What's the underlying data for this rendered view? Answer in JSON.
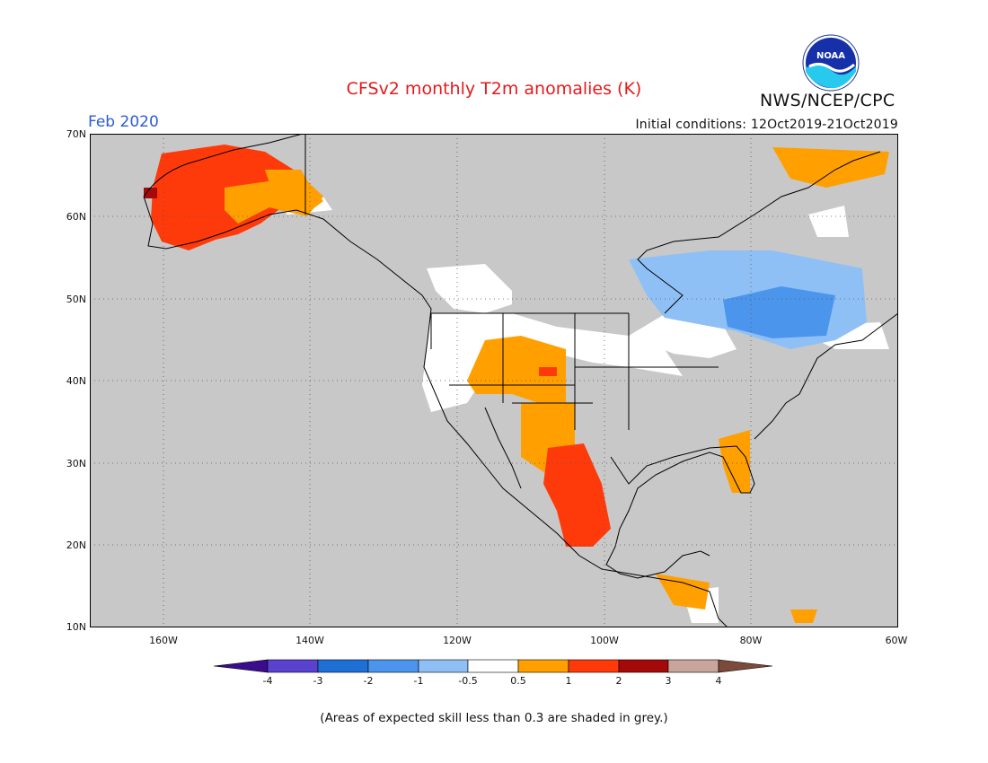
{
  "map": {
    "title": "CFSv2 monthly T2m anomalies (K)",
    "valid_month": "Feb 2020",
    "initial_conditions": "Initial conditions: 12Oct2019-21Oct2019",
    "agency": "NWS/NCEP/CPC",
    "logo_text": "NOAA",
    "lat_labels": [
      "70N",
      "60N",
      "50N",
      "40N",
      "30N",
      "20N",
      "10N"
    ],
    "lon_labels": [
      "160W",
      "140W",
      "120W",
      "100W",
      "80W",
      "60W"
    ],
    "extent": {
      "lon_min": -171,
      "lon_max": -61,
      "lat_min": 10,
      "lat_max": 70
    },
    "grid_lines": "dotted",
    "footnote": "(Areas of expected skill less than 0.3 are shaded in grey.)",
    "colors": {
      "background_grey": "#c8c8c8",
      "coastline": "#000000"
    }
  },
  "colorbar": {
    "labels": [
      "-4",
      "-3",
      "-2",
      "-1",
      "-0.5",
      "0.5",
      "1",
      "2",
      "3",
      "4"
    ],
    "colors": [
      "#3b0c8c",
      "#5a42cf",
      "#1e6fd6",
      "#4b95ec",
      "#8fc0f5",
      "#ffffff",
      "#ff9f00",
      "#ff3a0a",
      "#a50a0a",
      "#c8a59b",
      "#7b4a3a"
    ],
    "orientation": "horizontal",
    "arrows": "both-ends"
  },
  "anomaly_regions": [
    {
      "region": "Alaska",
      "category": "1 to 2",
      "color": "#ff3a0a"
    },
    {
      "region": "Western Alaska coast",
      "category": "2 to 3",
      "color": "#a50a0a"
    },
    {
      "region": "Yukon / NW Canada",
      "category": "0.5 to 1",
      "color": "#ff9f00"
    },
    {
      "region": "US Southwest & Rockies",
      "category": "0.5 to 1",
      "color": "#ff9f00"
    },
    {
      "region": "Northern Mexico (Sierra Madre)",
      "category": "1 to 2",
      "color": "#ff3a0a"
    },
    {
      "region": "Florida",
      "category": "0.5 to 1",
      "color": "#ff9f00"
    },
    {
      "region": "Central America",
      "category": "0.5 to 1",
      "color": "#ff9f00"
    },
    {
      "region": "Ontario / Quebec",
      "category": "-1 to -0.5",
      "color": "#8fc0f5"
    },
    {
      "region": "Southern Quebec / Great Lakes",
      "category": "-2 to -1",
      "color": "#4b95ec"
    },
    {
      "region": "Western & Northern US",
      "category": "-0.5 to 0.5",
      "color": "#ffffff"
    }
  ]
}
